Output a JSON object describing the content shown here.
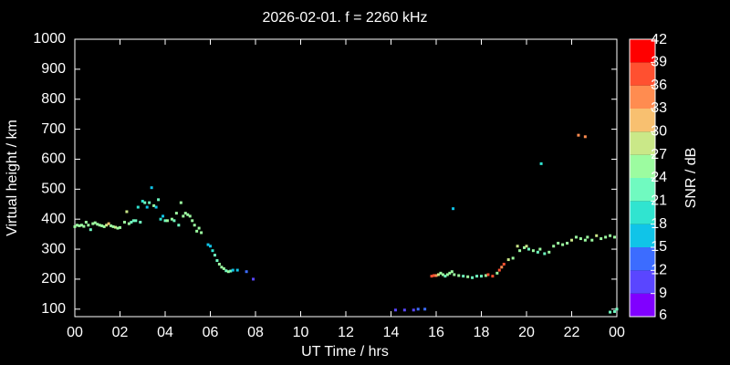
{
  "chart_data": {
    "type": "scatter",
    "title": "2026-02-01. f = 2260 kHz",
    "xlabel": "UT Time / hrs",
    "ylabel": "Virtual height / km",
    "xlim": [
      0,
      24
    ],
    "ylim": [
      75,
      1000
    ],
    "xticks": [
      {
        "value": 0,
        "label": "00"
      },
      {
        "value": 2,
        "label": "02"
      },
      {
        "value": 4,
        "label": "04"
      },
      {
        "value": 6,
        "label": "06"
      },
      {
        "value": 8,
        "label": "08"
      },
      10,
      12,
      14,
      16,
      18,
      20,
      22,
      {
        "value": 24,
        "label": "00"
      }
    ],
    "yticks": [
      100,
      200,
      300,
      400,
      500,
      600,
      700,
      800,
      900,
      1000
    ],
    "colorbar": {
      "label": "SNR / dB",
      "ticks": [
        6,
        9,
        12,
        15,
        18,
        21,
        24,
        27,
        30,
        33,
        36,
        39,
        42
      ],
      "colors": [
        "#8000ff",
        "#5a46ff",
        "#3c6cff",
        "#10c4e8",
        "#30e4d0",
        "#70fac0",
        "#9cfca0",
        "#cae888",
        "#f8c070",
        "#ff8c50",
        "#ff5030",
        "#ff0000"
      ]
    },
    "x": [
      0.0,
      0.1,
      0.2,
      0.3,
      0.4,
      0.5,
      0.6,
      0.7,
      0.8,
      0.9,
      1.0,
      1.1,
      1.2,
      1.3,
      1.4,
      1.5,
      1.6,
      1.7,
      1.8,
      1.9,
      2.0,
      2.2,
      2.3,
      2.4,
      2.5,
      2.6,
      2.7,
      2.8,
      2.9,
      3.0,
      3.1,
      3.2,
      3.3,
      3.4,
      3.5,
      3.6,
      3.7,
      3.8,
      3.9,
      4.0,
      4.1,
      4.3,
      4.4,
      4.5,
      4.6,
      4.7,
      4.8,
      4.9,
      5.0,
      5.1,
      5.2,
      5.3,
      5.4,
      5.5,
      5.6,
      5.9,
      6.0,
      6.1,
      6.2,
      6.3,
      6.4,
      6.5,
      6.6,
      6.7,
      6.8,
      6.9,
      7.0,
      7.2,
      7.6,
      7.9,
      14.2,
      14.6,
      15.0,
      15.2,
      15.5,
      15.8,
      15.9,
      16.0,
      16.1,
      16.2,
      16.3,
      16.4,
      16.5,
      16.6,
      16.7,
      16.75,
      16.8,
      17.0,
      17.2,
      17.4,
      17.6,
      17.8,
      18.0,
      18.2,
      18.3,
      18.5,
      18.7,
      18.8,
      18.9,
      19.0,
      19.2,
      19.4,
      19.6,
      19.7,
      19.9,
      20.0,
      20.1,
      20.3,
      20.5,
      20.6,
      20.65,
      20.8,
      21.0,
      21.2,
      21.4,
      21.6,
      21.8,
      22.0,
      22.2,
      22.3,
      22.4,
      22.6,
      22.6,
      22.7,
      22.9,
      23.1,
      23.3,
      23.5,
      23.7,
      23.9,
      23.7,
      23.9,
      24.0
    ],
    "values": [
      375,
      380,
      378,
      380,
      376,
      390,
      380,
      365,
      385,
      388,
      383,
      380,
      378,
      375,
      380,
      385,
      378,
      375,
      373,
      370,
      372,
      390,
      425,
      385,
      390,
      395,
      395,
      440,
      390,
      460,
      455,
      440,
      455,
      505,
      445,
      440,
      465,
      400,
      410,
      395,
      395,
      400,
      395,
      420,
      380,
      455,
      410,
      420,
      415,
      410,
      395,
      380,
      360,
      370,
      355,
      315,
      310,
      295,
      280,
      262,
      250,
      240,
      235,
      228,
      225,
      227,
      230,
      230,
      225,
      200,
      97,
      97,
      97,
      100,
      100,
      210,
      212,
      212,
      215,
      220,
      215,
      210,
      215,
      220,
      225,
      435,
      215,
      212,
      210,
      208,
      205,
      210,
      210,
      212,
      215,
      210,
      220,
      230,
      240,
      250,
      265,
      270,
      310,
      295,
      305,
      310,
      300,
      295,
      290,
      300,
      585,
      285,
      290,
      310,
      320,
      315,
      320,
      330,
      340,
      680,
      335,
      675,
      330,
      340,
      330,
      345,
      335,
      340,
      345,
      340,
      90,
      92,
      100
    ],
    "snr": [
      25,
      24,
      25,
      24,
      25,
      26,
      24,
      23,
      25,
      26,
      25,
      25,
      24,
      26,
      27,
      30,
      25,
      26,
      27,
      25,
      26,
      25,
      27,
      24,
      23,
      22,
      22,
      18,
      23,
      19,
      23,
      15,
      22,
      15,
      24,
      15,
      22,
      18,
      15,
      21,
      24,
      25,
      23,
      25,
      23,
      24,
      25,
      25,
      24,
      26,
      25,
      24,
      25,
      26,
      25,
      16,
      17,
      19,
      21,
      22,
      24,
      25,
      24,
      23,
      24,
      22,
      17,
      16,
      13,
      10,
      10,
      10,
      10,
      12,
      13,
      36,
      36,
      34,
      27,
      25,
      24,
      23,
      25,
      26,
      24,
      16,
      25,
      24,
      23,
      25,
      22,
      21,
      23,
      24,
      36,
      36,
      26,
      36,
      33,
      36,
      27,
      26,
      28,
      26,
      25,
      27,
      22,
      25,
      23,
      24,
      18,
      22,
      25,
      26,
      24,
      25,
      26,
      27,
      25,
      33,
      24,
      33,
      25,
      26,
      25,
      27,
      24,
      25,
      26,
      24,
      21,
      21,
      22
    ]
  }
}
